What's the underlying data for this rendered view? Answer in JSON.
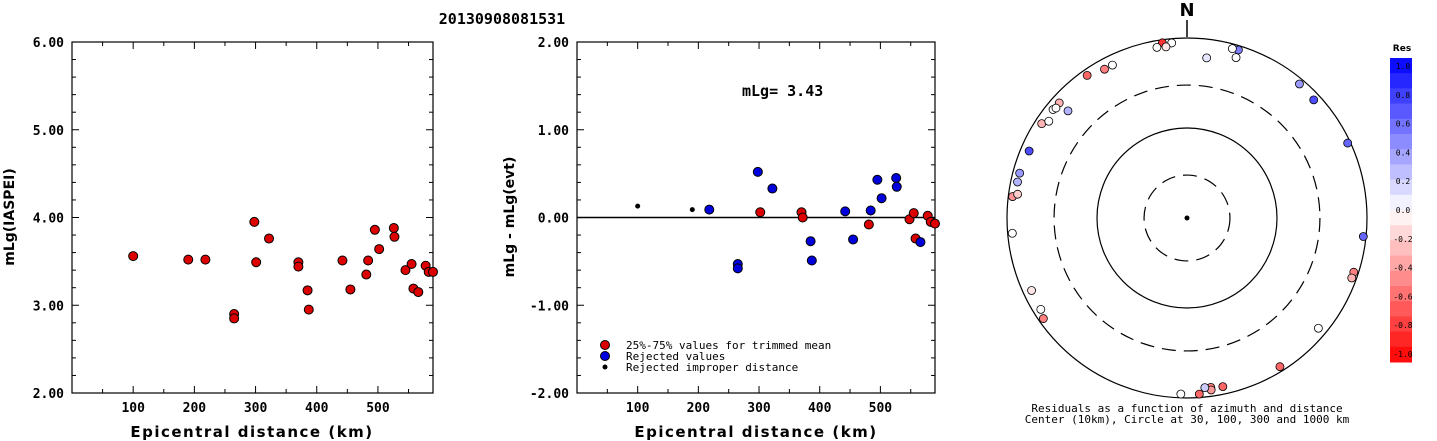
{
  "title": "20130908081531",
  "panel1": {
    "ylabel": "mLg(IASPEI)",
    "xlabel": "Epicentral distance (km)",
    "yticks": [
      "2.00",
      "3.00",
      "4.00",
      "5.00",
      "6.00"
    ],
    "xticks": [
      "100",
      "200",
      "300",
      "400",
      "500"
    ]
  },
  "panel2": {
    "ylabel": "mLg - mLg(evt)",
    "xlabel": "Epicentral distance (km)",
    "yticks": [
      "-2.00",
      "-1.00",
      "0.00",
      "1.00",
      "2.00"
    ],
    "xticks": [
      "100",
      "200",
      "300",
      "400",
      "500"
    ],
    "annotation": "mLg= 3.43",
    "legend": [
      "25%-75% values for trimmed mean",
      "Rejected values",
      "Rejected improper distance"
    ]
  },
  "polar": {
    "north_label": "N",
    "caption_line1": "Residuals as a function of azimuth and distance",
    "caption_line2": "Center (10km), Circle at 30, 100, 300 and 1000 km"
  },
  "colorbar": {
    "title": "Res",
    "labels": [
      "1.0",
      "0.8",
      "0.6",
      "0.4",
      "0.2",
      "0.0",
      "-0.2",
      "-0.4",
      "-0.6",
      "-0.8",
      "-1.0"
    ]
  },
  "colors": {
    "trimmed": "#dd0000",
    "rejected": "#0000dd",
    "improper": "#000000"
  },
  "chart_data": [
    {
      "type": "scatter",
      "xlabel": "Epicentral distance (km)",
      "ylabel": "mLg(IASPEI)",
      "xlim": [
        0,
        590
      ],
      "ylim": [
        2.0,
        6.0
      ],
      "points": [
        [
          100,
          3.56
        ],
        [
          190,
          3.52
        ],
        [
          218,
          3.52
        ],
        [
          265,
          2.9
        ],
        [
          265,
          2.85
        ],
        [
          298,
          3.95
        ],
        [
          301,
          3.49
        ],
        [
          322,
          3.76
        ],
        [
          370,
          3.49
        ],
        [
          370,
          3.44
        ],
        [
          385,
          3.17
        ],
        [
          387,
          2.95
        ],
        [
          442,
          3.51
        ],
        [
          455,
          3.18
        ],
        [
          481,
          3.35
        ],
        [
          484,
          3.51
        ],
        [
          495,
          3.86
        ],
        [
          502,
          3.64
        ],
        [
          526,
          3.88
        ],
        [
          527,
          3.78
        ],
        [
          545,
          3.4
        ],
        [
          555,
          3.47
        ],
        [
          558,
          3.19
        ],
        [
          566,
          3.15
        ],
        [
          578,
          3.45
        ],
        [
          583,
          3.38
        ],
        [
          590,
          3.38
        ]
      ]
    },
    {
      "type": "scatter",
      "xlabel": "Epicentral distance (km)",
      "ylabel": "mLg - mLg(evt)",
      "xlim": [
        0,
        590
      ],
      "ylim": [
        -2.0,
        2.0
      ],
      "series": [
        {
          "name": "25%-75% values for trimmed mean",
          "points": [
            [
              302,
              0.06
            ],
            [
              370,
              0.06
            ],
            [
              372,
              0.0
            ],
            [
              481,
              -0.08
            ],
            [
              548,
              -0.02
            ],
            [
              555,
              0.05
            ],
            [
              558,
              -0.24
            ],
            [
              578,
              0.02
            ],
            [
              583,
              -0.05
            ],
            [
              590,
              -0.07
            ]
          ]
        },
        {
          "name": "Rejected values",
          "points": [
            [
              218,
              0.09
            ],
            [
              265,
              -0.53
            ],
            [
              265,
              -0.58
            ],
            [
              298,
              0.52
            ],
            [
              322,
              0.33
            ],
            [
              385,
              -0.27
            ],
            [
              387,
              -0.49
            ],
            [
              442,
              0.07
            ],
            [
              455,
              -0.25
            ],
            [
              484,
              0.08
            ],
            [
              495,
              0.43
            ],
            [
              502,
              0.22
            ],
            [
              526,
              0.45
            ],
            [
              527,
              0.35
            ],
            [
              566,
              -0.28
            ]
          ]
        },
        {
          "name": "Rejected improper distance",
          "points": [
            [
              100,
              0.13
            ],
            [
              190,
              0.09
            ]
          ]
        }
      ]
    },
    {
      "type": "scatter",
      "coordinate_system": "polar (azimuth deg, distance km)",
      "rings_km": [
        30,
        100,
        300,
        1000
      ],
      "points": [
        [
          352,
          990,
          -0.8
        ],
        [
          355,
          960,
          0.0
        ],
        [
          353,
          880,
          -0.1
        ],
        [
          350,
          900,
          0.0
        ],
        [
          17,
          960,
          0.5
        ],
        [
          17,
          780,
          0.0
        ],
        [
          40,
          940,
          0.4
        ],
        [
          47,
          900,
          0.7
        ],
        [
          65,
          1000,
          0.6
        ],
        [
          96,
          1000,
          0.6
        ],
        [
          108,
          950,
          -0.5
        ],
        [
          110,
          950,
          -0.3
        ],
        [
          130,
          860,
          0.0
        ],
        [
          148,
          950,
          -0.6
        ],
        [
          168,
          880,
          -0.6
        ],
        [
          172,
          850,
          -0.5
        ],
        [
          172,
          910,
          -0.4
        ],
        [
          174,
          840,
          0.2
        ],
        [
          176,
          980,
          -0.6
        ],
        [
          182,
          970,
          0.0
        ],
        [
          235,
          950,
          -0.5
        ],
        [
          238,
          880,
          0.0
        ],
        [
          245,
          860,
          -0.1
        ],
        [
          265,
          950,
          0.0
        ],
        [
          277,
          960,
          -0.4
        ],
        [
          278,
          850,
          -0.2
        ],
        [
          285,
          900,
          0.4
        ],
        [
          282,
          900,
          0.3
        ],
        [
          293,
          860,
          0.7
        ],
        [
          303,
          900,
          -0.3
        ],
        [
          305,
          800,
          0.0
        ],
        [
          309,
          880,
          0.0
        ],
        [
          312,
          870,
          -0.3
        ],
        [
          310,
          850,
          0.0
        ],
        [
          312,
          640,
          0.3
        ],
        [
          325,
          920,
          -0.6
        ],
        [
          331,
          830,
          -0.5
        ],
        [
          334,
          830,
          0.0
        ],
        [
          15,
          950,
          0.0
        ],
        [
          7,
          660,
          0.1
        ]
      ]
    }
  ]
}
